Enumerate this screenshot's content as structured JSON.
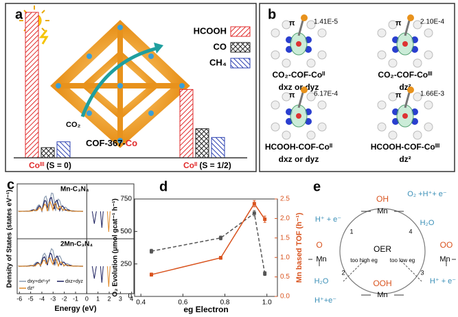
{
  "panel_a": {
    "label": "a",
    "legend": [
      "HCOOH",
      "CO",
      "CH₄"
    ],
    "colors": [
      "#e02a2a",
      "#222222",
      "#2a3fb0"
    ],
    "material": "COF-367-",
    "metal": "Co",
    "molecule": "CO₂",
    "groups": [
      {
        "metal": "Coᴵᴵᴵ",
        "spin": "(S = 0)",
        "values": [
          100,
          7,
          11
        ]
      },
      {
        "metal": "Coᴵᴵ",
        "spin": "(S = 1/2)",
        "values": [
          47,
          20,
          14
        ]
      }
    ]
  },
  "panel_b": {
    "label": "b",
    "symbol": "π",
    "items": [
      {
        "value": "1.41E-5",
        "name": "CO₂-COF-Coᴵᴵ",
        "orbital": "dxz or dyz"
      },
      {
        "value": "2.10E-4",
        "name": "CO₂-COF-Coᴵᴵᴵ",
        "orbital": "dz²"
      },
      {
        "value": "6.17E-4",
        "name": "HCOOH-COF-Coᴵᴵ",
        "orbital": "dxz or dyz"
      },
      {
        "value": "1.66E-3",
        "name": "HCOOH-COF-Coᴵᴵᴵ",
        "orbital": "dz²"
      }
    ]
  },
  "panel_c": {
    "label": "c",
    "ylabel": "Density of States (states eV⁻¹)",
    "xlabel": "Energy (eV)",
    "xlim": [
      -6.2,
      4.2
    ],
    "xticks": [
      -6,
      -5,
      -4,
      -3,
      -2,
      -1,
      0,
      1,
      2,
      3,
      4
    ],
    "subplots": [
      "Mn-C₃N₄",
      "2Mn-C₃N₄"
    ],
    "legend": [
      "dxy+dx²-y²",
      "dxz+dyz",
      "dz²"
    ],
    "colors": [
      "#8a9bb0",
      "#1b1f5e",
      "#e08a2a"
    ]
  },
  "chart_data": {
    "type": "line",
    "label": "d",
    "xlabel": "eg Electron",
    "ylabel": "O₂ Evolution (μmol gcat⁻¹ h⁻¹)",
    "y2label": "Mn based TOF (h⁻¹)",
    "x": [
      0.45,
      0.78,
      0.94,
      0.99
    ],
    "xlim": [
      0.37,
      1.05
    ],
    "xticks": [
      0.4,
      0.6,
      0.8,
      {
        "value": 1,
        "label": "1.0"
      }
    ],
    "ylim": [
      0,
      750
    ],
    "yticks": [
      0,
      250,
      500,
      750
    ],
    "y2lim": [
      0,
      2.5
    ],
    "y2ticks": [
      {
        "value": 0,
        "label": "0.0"
      },
      0.5,
      {
        "value": 1,
        "label": "1.0"
      },
      1.5,
      {
        "value": 2,
        "label": "2.0"
      },
      2.5
    ],
    "y2color": "#d9531e",
    "series": [
      {
        "color": "#555555",
        "dashed": true,
        "values": [
          348,
          450,
          640,
          176
        ],
        "errors": [
          15,
          15,
          20,
          15
        ]
      },
      {
        "color": "#d9531e",
        "axis": "y2",
        "values": [
          0.56,
          0.99,
          2.38,
          1.98
        ],
        "errors": [
          0.04,
          0.04,
          0.08,
          0.08
        ]
      }
    ]
  },
  "panel_e": {
    "label": "e",
    "texts": [
      "OH",
      "Mn",
      "O₂ +H⁺+ e⁻",
      "H₂O",
      "4",
      "H⁺ + e⁻",
      "1",
      "O",
      "Mn",
      "OO",
      "Mn",
      "OER",
      "too high eg",
      "too low eg",
      "OOH",
      "Mn",
      "H₂O",
      "2",
      "H⁺+e⁻",
      "H⁺ + e⁻",
      "3"
    ]
  }
}
